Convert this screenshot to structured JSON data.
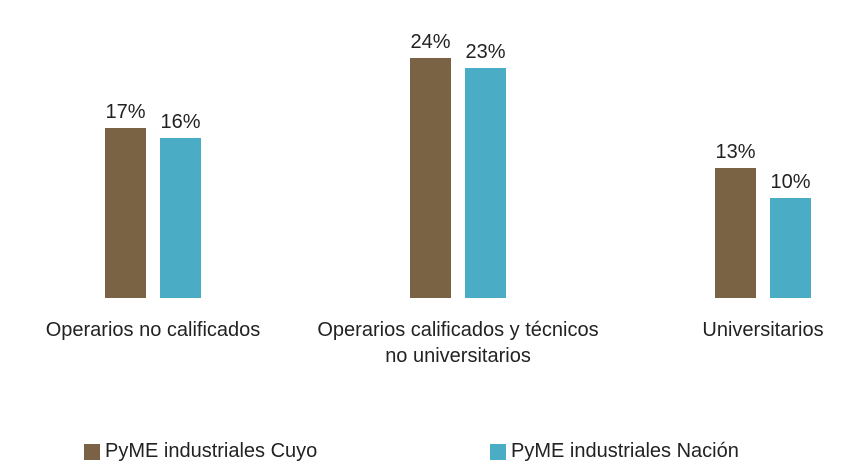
{
  "chart_data": {
    "type": "bar",
    "categories": [
      "Operarios no calificados",
      "Operarios calificados y técnicos no universitarios",
      "Universitarios"
    ],
    "series": [
      {
        "name": "PyME industriales Cuyo",
        "color": "#7a6344",
        "values": [
          17,
          24,
          13
        ],
        "value_labels": [
          "17%",
          "24%",
          "13%"
        ]
      },
      {
        "name": "PyME industriales Nación",
        "color": "#4bacc6",
        "values": [
          16,
          23,
          10
        ],
        "value_labels": [
          "16%",
          "23%",
          "10%"
        ]
      }
    ],
    "legend": "bottom"
  }
}
